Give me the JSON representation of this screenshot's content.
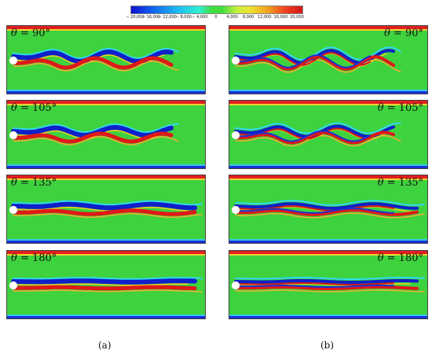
{
  "colorbar": {
    "ticks": [
      "− 20,000",
      "− 16,000",
      "− 12,000",
      "− 8,000",
      "− 4,000",
      "0",
      "4,000",
      "8,000",
      "12,000",
      "16,000",
      "20,000"
    ],
    "colors": [
      "#1010d0",
      "#1060f0",
      "#20c0f0",
      "#30f0d0",
      "#40dd40",
      "#c8f040",
      "#f0e030",
      "#f0a020",
      "#f04020",
      "#d01818"
    ]
  },
  "panels": [
    {
      "column": "a",
      "symbol": "θ",
      "label": "= 90°"
    },
    {
      "column": "a",
      "symbol": "θ",
      "label": "= 105°"
    },
    {
      "column": "a",
      "symbol": "θ",
      "label": "= 135°"
    },
    {
      "column": "a",
      "symbol": "θ",
      "label": "= 180°"
    },
    {
      "column": "b",
      "symbol": "θ",
      "label": "= 90°"
    },
    {
      "column": "b",
      "symbol": "θ",
      "label": "= 105°"
    },
    {
      "column": "b",
      "symbol": "θ",
      "label": "= 135°"
    },
    {
      "column": "b",
      "symbol": "θ",
      "label": "= 180°"
    }
  ],
  "captions": {
    "a": "(a)",
    "b": "(b)"
  }
}
